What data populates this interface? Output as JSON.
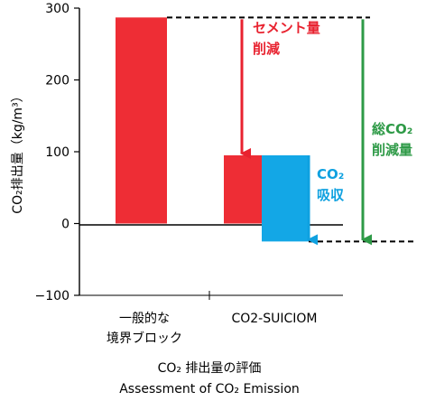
{
  "chart_data": {
    "type": "bar",
    "categories": [
      "一般的な\n境界ブロック",
      "CO2-SUICIOM"
    ],
    "series": [
      {
        "values": [
          287,
          95
        ]
      },
      {
        "values": [
          null,
          95
        ]
      },
      {
        "values": [
          null,
          -25
        ]
      }
    ],
    "ylabel": "CO₂排出量（kg/m³）",
    "xlabel_line1": "CO₂ 排出量の評価",
    "xlabel_line2": "Assessment of CO₂ Emission",
    "ylim": [
      -100,
      300
    ],
    "yticks": [
      -100,
      0,
      100,
      200,
      300
    ],
    "grid": false,
    "annotations": {
      "cement": {
        "line1": "セメント量",
        "line2": "削減"
      },
      "absorb": {
        "line1": "CO₂",
        "line2": "吸収"
      },
      "total": {
        "line1": "総CO₂",
        "line2": "削減量"
      }
    },
    "colors": {
      "red": "#ee2d35",
      "blue": "#13a7e6",
      "green": "#2e9a47",
      "ann_red": "#e8222f",
      "ann_blue": "#0fa1e0",
      "ann_green": "#2e9a47"
    }
  }
}
